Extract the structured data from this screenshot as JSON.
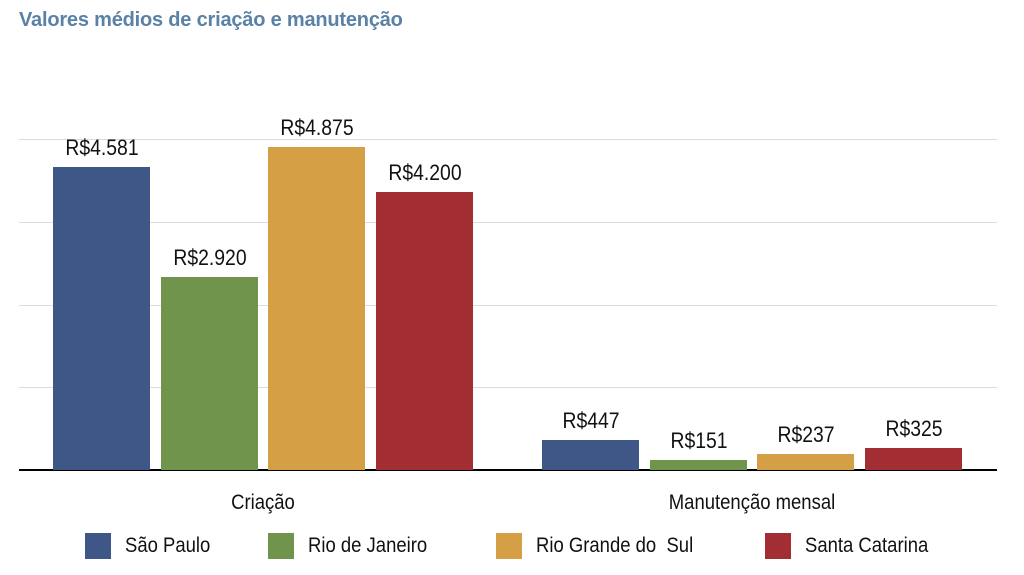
{
  "header": {
    "title": "Valores médios de criação e manutenção"
  },
  "colors": {
    "sao_paulo": "#3f5787",
    "rio_de_janeiro": "#70944b",
    "rio_grande_do_sul": "#d59f45",
    "santa_catarina": "#a22e34",
    "title": "#5a81a6",
    "gridline": "#dcdcdc"
  },
  "legend": {
    "items": [
      {
        "label": "São Paulo",
        "color": "#3f5787"
      },
      {
        "label": "Rio de Janeiro",
        "color": "#70944b"
      },
      {
        "label": "Rio Grande do  Sul",
        "color": "#d59f45"
      },
      {
        "label": "Santa Catarina",
        "color": "#a22e34"
      }
    ]
  },
  "chart_data": {
    "type": "bar",
    "title": "Valores médios de criação e manutenção",
    "xlabel": "",
    "ylabel": "",
    "categories": [
      "Criação",
      "Manutenção mensal"
    ],
    "series": [
      {
        "name": "São Paulo",
        "values": [
          4581,
          447
        ],
        "labels": [
          "R$4.581",
          "R$447"
        ],
        "color": "#3f5787"
      },
      {
        "name": "Rio de Janeiro",
        "values": [
          2920,
          151
        ],
        "labels": [
          "R$2.920",
          "R$151"
        ],
        "color": "#70944b"
      },
      {
        "name": "Rio Grande do  Sul",
        "values": [
          4875,
          237
        ],
        "labels": [
          "R$4.875",
          "R$237"
        ],
        "color": "#d59f45"
      },
      {
        "name": "Santa Catarina",
        "values": [
          4200,
          325
        ],
        "labels": [
          "R$4.200",
          "R$325"
        ],
        "color": "#a22e34"
      }
    ],
    "ylim": [
      0,
      5000
    ],
    "gridlines": [
      1250,
      2500,
      3750,
      5000
    ],
    "grid": true,
    "y_tick_labels_visible": false,
    "legend_position": "bottom"
  }
}
